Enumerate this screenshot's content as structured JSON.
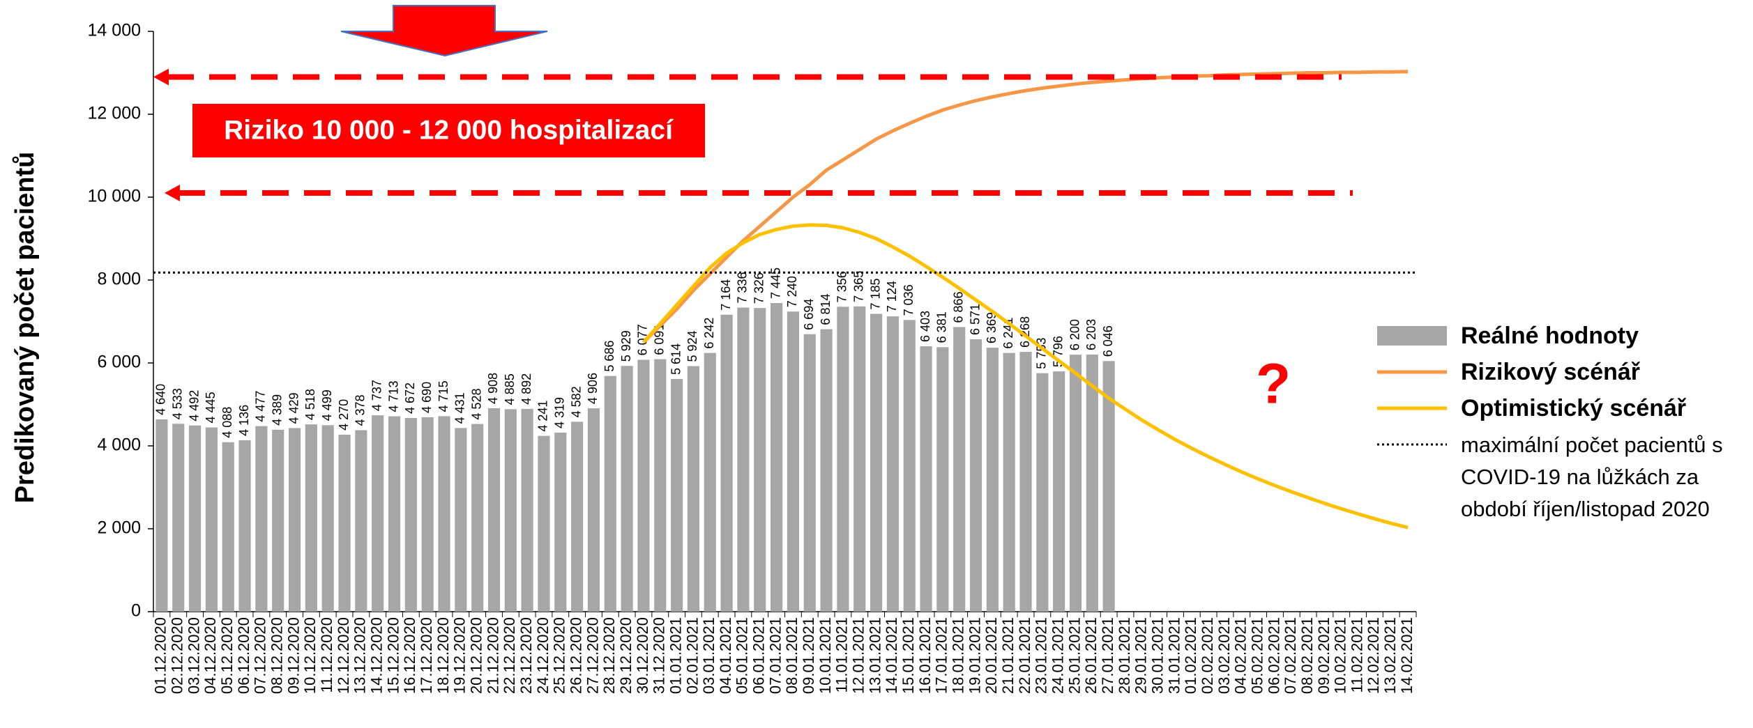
{
  "chart_data": {
    "type": "bar",
    "y_label": "Predikovaný počet pacientů",
    "categories": [
      "01.12.2020",
      "02.12.2020",
      "03.12.2020",
      "04.12.2020",
      "05.12.2020",
      "06.12.2020",
      "07.12.2020",
      "08.12.2020",
      "09.12.2020",
      "10.12.2020",
      "11.12.2020",
      "12.12.2020",
      "13.12.2020",
      "14.12.2020",
      "15.12.2020",
      "16.12.2020",
      "17.12.2020",
      "18.12.2020",
      "19.12.2020",
      "20.12.2020",
      "21.12.2020",
      "22.12.2020",
      "23.12.2020",
      "24.12.2020",
      "25.12.2020",
      "26.12.2020",
      "27.12.2020",
      "28.12.2020",
      "29.12.2020",
      "30.12.2020",
      "31.12.2020",
      "01.01.2021",
      "02.01.2021",
      "03.01.2021",
      "04.01.2021",
      "05.01.2021",
      "06.01.2021",
      "07.01.2021",
      "08.01.2021",
      "09.01.2021",
      "10.01.2021",
      "11.01.2021",
      "12.01.2021",
      "13.01.2021",
      "14.01.2021",
      "15.01.2021",
      "16.01.2021",
      "17.01.2021",
      "18.01.2021",
      "19.01.2021",
      "20.01.2021",
      "21.01.2021",
      "22.01.2021",
      "23.01.2021",
      "24.01.2021",
      "25.01.2021",
      "26.01.2021",
      "27.01.2021",
      "28.01.2021",
      "29.01.2021",
      "30.01.2021",
      "31.01.2021",
      "01.02.2021",
      "02.02.2021",
      "03.02.2021",
      "04.02.2021",
      "05.02.2021",
      "06.02.2021",
      "07.02.2021",
      "08.02.2021",
      "09.02.2021",
      "10.02.2021",
      "11.02.2021",
      "12.02.2021",
      "13.02.2021",
      "14.02.2021"
    ],
    "ylim": [
      0,
      14000
    ],
    "yticks": [
      {
        "value": 0,
        "label": "0"
      },
      {
        "value": 2000,
        "label": "2 000"
      },
      {
        "value": 4000,
        "label": "4 000"
      },
      {
        "value": 6000,
        "label": "6 000"
      },
      {
        "value": 8000,
        "label": "8 000"
      },
      {
        "value": 10000,
        "label": "10 000"
      },
      {
        "value": 12000,
        "label": "12 000"
      },
      {
        "value": 14000,
        "label": "14 000"
      }
    ],
    "series": [
      {
        "name": "Reálné hodnoty",
        "type": "bar",
        "color": "#a6a6a6",
        "values": [
          4640,
          4533,
          4492,
          4445,
          4088,
          4136,
          4477,
          4389,
          4429,
          4518,
          4499,
          4270,
          4378,
          4737,
          4713,
          4672,
          4690,
          4715,
          4431,
          4528,
          4908,
          4885,
          4892,
          4241,
          4319,
          4582,
          4906,
          5686,
          5929,
          6077,
          6091,
          5614,
          5924,
          6242,
          7164,
          7336,
          7326,
          7445,
          7240,
          6694,
          6814,
          7356,
          7365,
          7185,
          7124,
          7036,
          6403,
          6381,
          6866,
          6571,
          6369,
          6241,
          6268,
          5753,
          5796,
          6200,
          6203,
          6046,
          null,
          null,
          null,
          null,
          null,
          null,
          null,
          null,
          null,
          null,
          null,
          null,
          null,
          null,
          null,
          null,
          null,
          null
        ],
        "value_labels": [
          "4 640",
          "4 533",
          "4 492",
          "4 445",
          "4 088",
          "4 136",
          "4 477",
          "4 389",
          "4 429",
          "4 518",
          "4 499",
          "4 270",
          "4 378",
          "4 737",
          "4 713",
          "4 672",
          "4 690",
          "4 715",
          "4 431",
          "4 528",
          "4 908",
          "4 885",
          "4 892",
          "4 241",
          "4 319",
          "4 582",
          "4 906",
          "5 686",
          "5 929",
          "6 077",
          "6 091",
          "5 614",
          "5 924",
          "6 242",
          "7 164",
          "7 336",
          "7 326",
          "7 445",
          "7 240",
          "6 694",
          "6 814",
          "7 356",
          "7 365",
          "7 185",
          "7 124",
          "7 036",
          "6 403",
          "6 381",
          "6 866",
          "6 571",
          "6 369",
          "6 241",
          "6 268",
          "5 753",
          "5 796",
          "6 200",
          "6 203",
          "6 046",
          null,
          null,
          null,
          null,
          null,
          null,
          null,
          null,
          null,
          null,
          null,
          null,
          null,
          null,
          null,
          null,
          null,
          null
        ]
      },
      {
        "name": "Rizikový scénář",
        "type": "line",
        "color": "#f79646",
        "values": [
          null,
          null,
          null,
          null,
          null,
          null,
          null,
          null,
          null,
          null,
          null,
          null,
          null,
          null,
          null,
          null,
          null,
          null,
          null,
          null,
          null,
          null,
          null,
          null,
          null,
          null,
          null,
          null,
          null,
          6500,
          6900,
          7300,
          7750,
          8150,
          8550,
          8950,
          9300,
          9650,
          10000,
          10300,
          10650,
          10900,
          11150,
          11400,
          11600,
          11780,
          11950,
          12100,
          12220,
          12330,
          12420,
          12500,
          12570,
          12630,
          12680,
          12730,
          12770,
          12800,
          12830,
          12860,
          12880,
          12900,
          12920,
          12930,
          12950,
          12960,
          12970,
          12980,
          12990,
          13000,
          13000,
          13010,
          13010,
          13020,
          13020,
          13030
        ]
      },
      {
        "name": "Optimistický scénář",
        "type": "line",
        "color": "#ffc000",
        "values": [
          null,
          null,
          null,
          null,
          null,
          null,
          null,
          null,
          null,
          null,
          null,
          null,
          null,
          null,
          null,
          null,
          null,
          null,
          null,
          null,
          null,
          null,
          null,
          null,
          null,
          null,
          null,
          null,
          null,
          6500,
          6950,
          7400,
          7850,
          8300,
          8650,
          8900,
          9100,
          9220,
          9300,
          9330,
          9320,
          9260,
          9150,
          9000,
          8800,
          8580,
          8330,
          8070,
          7800,
          7520,
          7240,
          6950,
          6650,
          6350,
          6050,
          5750,
          5450,
          5150,
          4880,
          4620,
          4380,
          4150,
          3940,
          3740,
          3550,
          3370,
          3200,
          3040,
          2890,
          2750,
          2610,
          2480,
          2360,
          2240,
          2130,
          2030
        ]
      },
      {
        "name": "maximální počet pacientů s COVID-19 na lůžkách za období říjen/listopad 2020",
        "type": "hline",
        "color": "#000000",
        "value": 8180
      }
    ],
    "annotations": {
      "box_text": "Riziko 10 000 - 12 000 hospitalizací",
      "question": "?",
      "color": "#ff0000",
      "risk_lines": [
        12900,
        10100
      ]
    }
  }
}
